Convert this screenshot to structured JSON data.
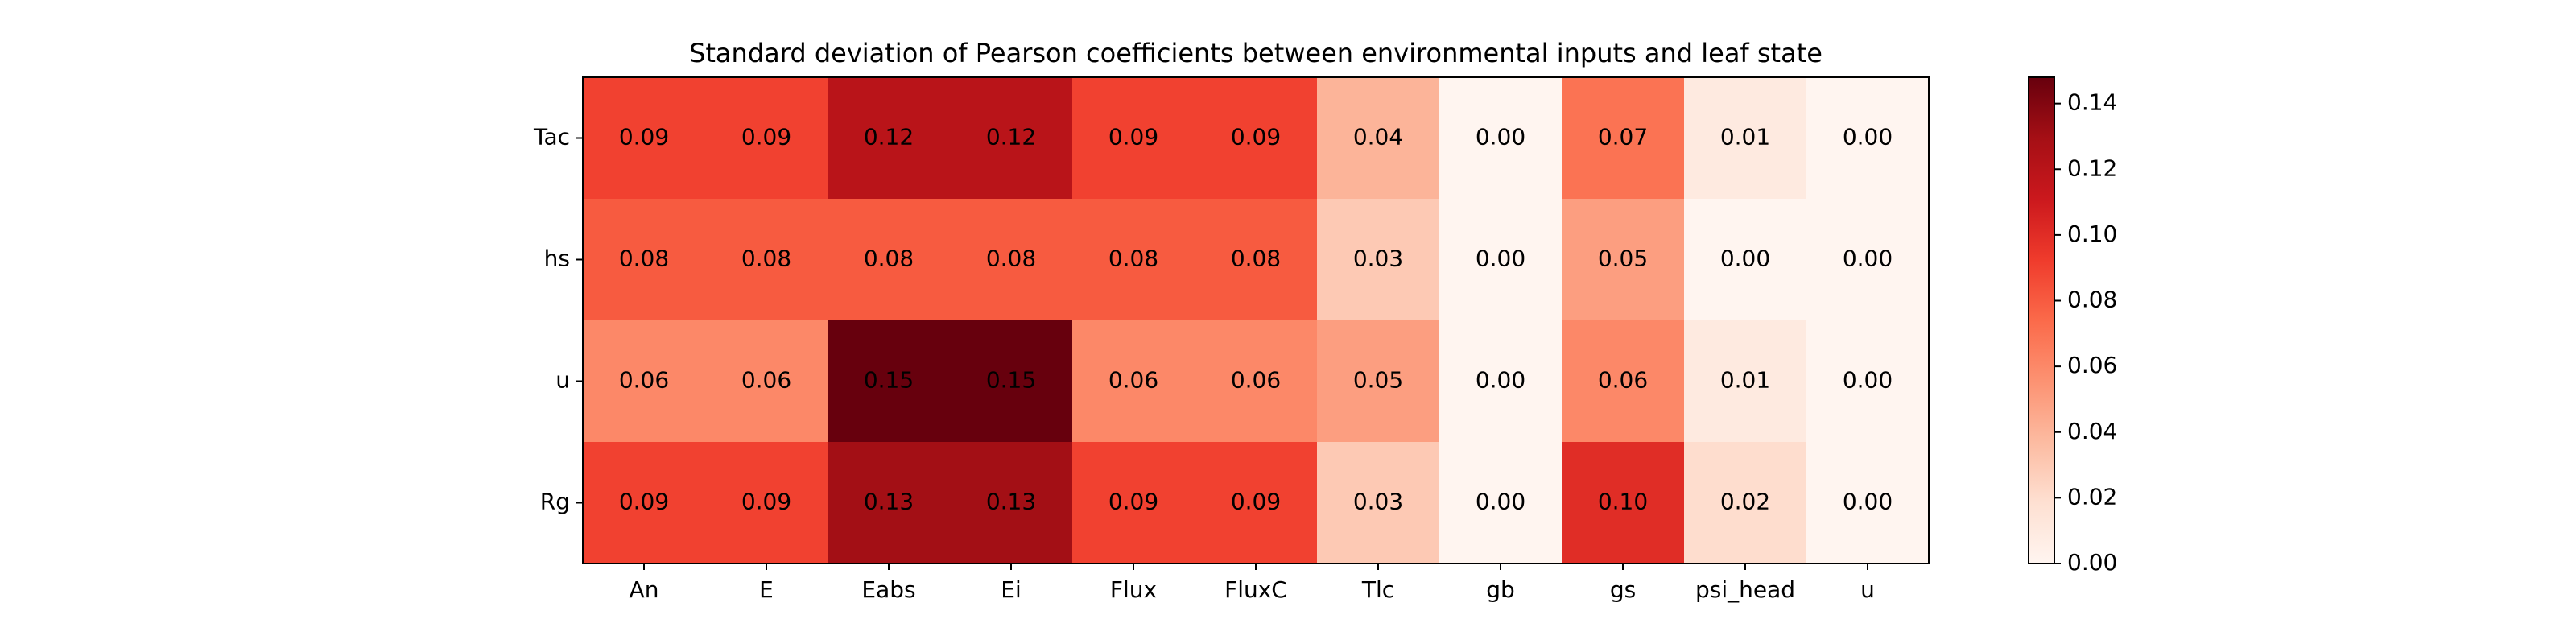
{
  "chart_data": {
    "type": "heatmap",
    "title": "Standard deviation of Pearson coefficients between environmental inputs and leaf state",
    "xlabel": "",
    "ylabel": "",
    "x_categories": [
      "An",
      "E",
      "Eabs",
      "Ei",
      "Flux",
      "FluxC",
      "Tlc",
      "gb",
      "gs",
      "psi_head",
      "u"
    ],
    "y_categories": [
      "Tac",
      "hs",
      "u",
      "Rg"
    ],
    "values": [
      [
        0.09,
        0.09,
        0.12,
        0.12,
        0.09,
        0.09,
        0.04,
        0.0,
        0.07,
        0.01,
        0.0
      ],
      [
        0.08,
        0.08,
        0.08,
        0.08,
        0.08,
        0.08,
        0.03,
        0.0,
        0.05,
        0.0,
        0.0
      ],
      [
        0.06,
        0.06,
        0.15,
        0.15,
        0.06,
        0.06,
        0.05,
        0.0,
        0.06,
        0.01,
        0.0
      ],
      [
        0.09,
        0.09,
        0.13,
        0.13,
        0.09,
        0.09,
        0.03,
        0.0,
        0.1,
        0.02,
        0.0
      ]
    ],
    "colorbar": {
      "min": 0.0,
      "max": 0.148,
      "ticks": [
        "0.00",
        "0.02",
        "0.04",
        "0.06",
        "0.08",
        "0.10",
        "0.12",
        "0.14"
      ],
      "colormap": "Reds"
    },
    "grid": false,
    "legend": "colorbar right"
  }
}
